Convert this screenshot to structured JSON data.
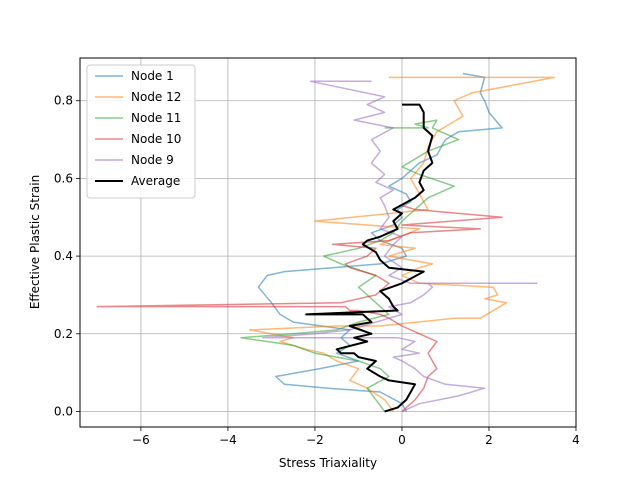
{
  "chart_data": {
    "type": "line",
    "title": "",
    "xlabel": "Stress Triaxiality",
    "ylabel": "Effective Plastic Strain",
    "xlim": [
      -7.4,
      4.0
    ],
    "ylim": [
      -0.04,
      0.91
    ],
    "xticks": [
      -6,
      -4,
      -2,
      0,
      2,
      4
    ],
    "yticks": [
      0.0,
      0.2,
      0.4,
      0.6,
      0.8
    ],
    "xtick_labels": [
      "−6",
      "−4",
      "−2",
      "0",
      "2",
      "4"
    ],
    "ytick_labels": [
      "0.0",
      "0.2",
      "0.4",
      "0.6",
      "0.8"
    ],
    "grid": true,
    "legend_position": "upper-left",
    "series": [
      {
        "name": "Node 1",
        "color": "#1f77b4",
        "opacity": 0.55,
        "width": 1.5,
        "x": [
          0.1,
          0.0,
          -0.5,
          -1.7,
          -2.7,
          -2.9,
          -1.9,
          -1.0,
          -1.5,
          -1.2,
          -1.4,
          -1.2,
          -2.5,
          -2.8,
          -3.0,
          -3.3,
          -3.1,
          -2.7,
          -0.5,
          0.1,
          0.0,
          -0.5,
          -0.7,
          -0.2,
          0.0,
          -0.1,
          0.2,
          0.1,
          -0.3,
          0.0,
          0.2,
          0.4,
          0.8,
          0.9,
          1.0,
          1.3,
          2.3,
          2.0,
          1.9,
          1.8,
          1.9,
          1.4
        ],
        "y": [
          0.0,
          0.02,
          0.05,
          0.06,
          0.07,
          0.09,
          0.11,
          0.13,
          0.15,
          0.17,
          0.19,
          0.21,
          0.23,
          0.25,
          0.28,
          0.32,
          0.35,
          0.36,
          0.38,
          0.4,
          0.42,
          0.44,
          0.46,
          0.48,
          0.5,
          0.52,
          0.54,
          0.56,
          0.58,
          0.6,
          0.62,
          0.64,
          0.66,
          0.68,
          0.7,
          0.72,
          0.73,
          0.77,
          0.8,
          0.82,
          0.86,
          0.87
        ]
      },
      {
        "name": "Node 12",
        "color": "#ff7f0e",
        "opacity": 0.55,
        "width": 1.5,
        "x": [
          -0.2,
          -0.4,
          -0.8,
          -1.2,
          -1.0,
          -1.5,
          -1.8,
          -2.2,
          -2.8,
          -2.5,
          -3.5,
          -1.5,
          -0.5,
          1.2,
          1.8,
          2.1,
          2.4,
          1.9,
          2.2,
          2.1,
          0.4,
          0.0,
          0.4,
          0.7,
          -0.3,
          0.3,
          -0.5,
          0.4,
          -2.0,
          0.6,
          0.4,
          0.2,
          0.5,
          0.6,
          0.8,
          1.4,
          1.2,
          1.6,
          3.5,
          -0.3
        ],
        "y": [
          0.0,
          0.03,
          0.06,
          0.08,
          0.11,
          0.13,
          0.15,
          0.16,
          0.18,
          0.19,
          0.21,
          0.22,
          0.22,
          0.24,
          0.24,
          0.26,
          0.28,
          0.29,
          0.3,
          0.32,
          0.33,
          0.35,
          0.37,
          0.38,
          0.4,
          0.42,
          0.43,
          0.47,
          0.49,
          0.52,
          0.56,
          0.6,
          0.64,
          0.68,
          0.72,
          0.76,
          0.8,
          0.82,
          0.86,
          0.86
        ]
      },
      {
        "name": "Node 11",
        "color": "#2ca02c",
        "opacity": 0.55,
        "width": 1.5,
        "x": [
          -0.4,
          -0.6,
          -0.8,
          -0.3,
          -0.5,
          -1.0,
          -2.0,
          -2.5,
          -3.1,
          -3.7,
          -2.5,
          -1.5,
          -1.0,
          -0.3,
          -0.6,
          -1.0,
          -0.6,
          -1.4,
          -1.8,
          -1.0,
          -0.5,
          -0.2,
          0.0,
          0.3,
          0.6,
          1.2,
          0.4,
          0.0,
          0.6,
          1.3,
          0.7,
          0.8,
          0.3,
          0.6,
          -0.4
        ],
        "y": [
          0.0,
          0.03,
          0.06,
          0.09,
          0.11,
          0.13,
          0.15,
          0.17,
          0.18,
          0.19,
          0.2,
          0.21,
          0.23,
          0.25,
          0.28,
          0.32,
          0.35,
          0.38,
          0.4,
          0.42,
          0.44,
          0.46,
          0.49,
          0.52,
          0.55,
          0.58,
          0.61,
          0.63,
          0.67,
          0.7,
          0.73,
          0.75,
          0.74,
          0.73,
          0.73
        ]
      },
      {
        "name": "Node 10",
        "color": "#d62728",
        "opacity": 0.55,
        "width": 1.5,
        "x": [
          0.0,
          0.3,
          0.5,
          0.6,
          0.8,
          0.7,
          0.6,
          0.8,
          0.4,
          0.0,
          -0.3,
          -0.5,
          -1.0,
          -1.2,
          -1.3,
          -7.0,
          -1.4,
          -0.6,
          -0.3,
          -0.6,
          -1.2,
          -1.3,
          -0.8,
          -0.6,
          -1.6,
          -0.3,
          0.2,
          1.8,
          0.0,
          2.3,
          0.3,
          0.0
        ],
        "y": [
          0.0,
          0.03,
          0.06,
          0.09,
          0.11,
          0.13,
          0.15,
          0.18,
          0.2,
          0.22,
          0.24,
          0.25,
          0.26,
          0.26,
          0.27,
          0.27,
          0.28,
          0.3,
          0.33,
          0.35,
          0.37,
          0.38,
          0.4,
          0.42,
          0.43,
          0.44,
          0.46,
          0.47,
          0.48,
          0.5,
          0.52,
          0.53
        ]
      },
      {
        "name": "Node 9",
        "color": "#9467bd",
        "opacity": 0.55,
        "width": 1.5,
        "x": [
          0.0,
          0.4,
          1.3,
          1.9,
          1.0,
          0.5,
          0.3,
          0.0,
          -0.2,
          0.4,
          0.0,
          0.3,
          -0.1,
          -3.2,
          -2.0,
          -1.2,
          -0.6,
          0.0,
          -0.3,
          0.2,
          0.5,
          0.7,
          0.6,
          1.6,
          3.1,
          0.2,
          -0.3,
          0.0,
          -0.4,
          -0.2,
          0.0,
          -0.5,
          -0.3,
          -0.4,
          -0.5,
          -0.2,
          -0.6,
          -0.4,
          -0.7,
          -0.5,
          -0.7,
          -0.2,
          -1.1,
          -0.4,
          -0.8,
          -0.4,
          -2.1,
          -0.7
        ],
        "y": [
          0.0,
          0.02,
          0.04,
          0.06,
          0.07,
          0.09,
          0.11,
          0.13,
          0.14,
          0.15,
          0.16,
          0.18,
          0.19,
          0.19,
          0.2,
          0.21,
          0.23,
          0.25,
          0.27,
          0.28,
          0.3,
          0.32,
          0.33,
          0.33,
          0.33,
          0.33,
          0.35,
          0.37,
          0.4,
          0.43,
          0.45,
          0.47,
          0.5,
          0.53,
          0.55,
          0.57,
          0.59,
          0.61,
          0.64,
          0.67,
          0.7,
          0.73,
          0.75,
          0.77,
          0.79,
          0.81,
          0.85,
          0.85
        ]
      },
      {
        "name": "Average",
        "color": "#000000",
        "opacity": 1.0,
        "width": 2.0,
        "x": [
          -0.4,
          -0.1,
          0.1,
          0.2,
          0.3,
          -0.3,
          -0.5,
          -0.8,
          -0.6,
          -1.0,
          -1.1,
          -1.4,
          -1.5,
          -0.8,
          -1.1,
          -0.7,
          -1.2,
          -0.7,
          -0.9,
          -2.2,
          -0.1,
          -0.2,
          -0.3,
          -0.5,
          0.0,
          0.5,
          -0.3,
          -0.5,
          -0.6,
          -0.9,
          -0.8,
          -0.5,
          -0.1,
          -0.2,
          0.0,
          -0.2,
          0.3,
          0.5,
          0.4,
          0.5,
          0.7,
          0.6,
          0.7,
          0.5,
          0.5,
          0.4,
          0.0
        ],
        "y": [
          0.0,
          0.01,
          0.03,
          0.05,
          0.07,
          0.08,
          0.09,
          0.11,
          0.13,
          0.14,
          0.15,
          0.15,
          0.16,
          0.18,
          0.19,
          0.2,
          0.22,
          0.23,
          0.25,
          0.25,
          0.26,
          0.27,
          0.29,
          0.31,
          0.33,
          0.36,
          0.37,
          0.39,
          0.41,
          0.43,
          0.44,
          0.45,
          0.47,
          0.49,
          0.51,
          0.52,
          0.55,
          0.57,
          0.59,
          0.62,
          0.64,
          0.67,
          0.71,
          0.73,
          0.77,
          0.79,
          0.79
        ]
      }
    ]
  }
}
